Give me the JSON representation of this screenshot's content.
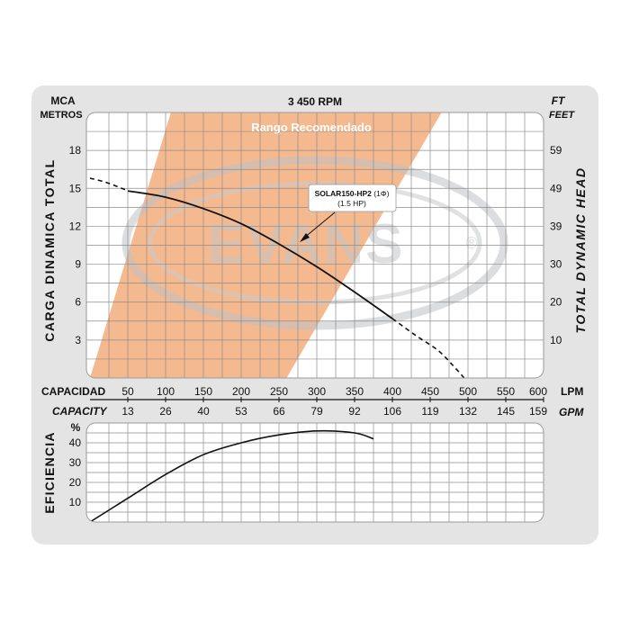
{
  "colors": {
    "panel": "#e4e4e4",
    "plot_bg": "#ffffff",
    "grid": "#8c8c8c",
    "recommended_band": "#f4b183",
    "curve": "#111111"
  },
  "header": {
    "rpm": "3 450 RPM",
    "left_unit_top": "MCA",
    "left_unit_bottom": "METROS",
    "right_unit_top": "FT",
    "right_unit_bottom": "FEET"
  },
  "watermark": {
    "text": "EVANS",
    "registered_mark": "®"
  },
  "recommended_range_label": "Rango Recomendado",
  "model_label": {
    "name": "SOLAR150-HP2",
    "phase": " (1Φ)",
    "power": "(1.5 HP)"
  },
  "axes": {
    "left_title": "CARGA DINAMICA TOTAL",
    "right_title": "TOTAL DYNAMIC HEAD",
    "lpm_title": "CAPACIDAD",
    "lpm_unit": "LPM",
    "gpm_title": "CAPACITY",
    "gpm_unit": "GPM",
    "efficiency_title": "EFICIENCIA",
    "efficiency_unit": "%"
  },
  "chart_data": [
    {
      "type": "line",
      "series": [
        {
          "name": "SOLAR150-HP2 (1Φ) (1.5 HP)",
          "x": [
            50,
            100,
            150,
            200,
            250,
            300,
            350,
            400
          ],
          "y": [
            14.8,
            14.3,
            13.4,
            12.2,
            10.6,
            8.8,
            6.8,
            4.7
          ]
        }
      ],
      "extension_dashed": {
        "low_flow": {
          "x": [
            0,
            20,
            40,
            50
          ],
          "y": [
            15.8,
            15.5,
            15.05,
            14.8
          ]
        },
        "high_flow": {
          "x": [
            400,
            430,
            460,
            480,
            495
          ],
          "y": [
            4.7,
            3.4,
            2.2,
            1.0,
            0.0
          ]
        }
      },
      "recommended_range_lpm": {
        "bottom": [
          0,
          260
        ],
        "top": [
          107,
          465
        ]
      },
      "x_lpm_ticks": [
        50,
        100,
        150,
        200,
        250,
        300,
        350,
        400,
        450,
        500,
        550,
        600
      ],
      "x_gpm_ticks": [
        13,
        26,
        40,
        53,
        66,
        79,
        92,
        106,
        119,
        132,
        145,
        159
      ],
      "xlim": [
        0,
        600
      ],
      "y_left_ticks": [
        3,
        6,
        9,
        12,
        15,
        18
      ],
      "y_right_ticks": [
        10,
        20,
        30,
        39,
        49,
        59
      ],
      "ylim": [
        0,
        21
      ]
    },
    {
      "type": "line",
      "series": [
        {
          "name": "EFICIENCIA",
          "x": [
            0,
            50,
            100,
            150,
            200,
            250,
            300,
            350,
            375
          ],
          "y": [
            0,
            12,
            24,
            34,
            40,
            44,
            46,
            45,
            42
          ]
        }
      ],
      "x_lpm_ticks": [
        50,
        100,
        150,
        200,
        250,
        300,
        350,
        400,
        450,
        500,
        550,
        600
      ],
      "y_ticks": [
        10,
        20,
        30,
        40
      ],
      "xlim": [
        0,
        600
      ],
      "ylim": [
        0,
        50
      ]
    }
  ]
}
